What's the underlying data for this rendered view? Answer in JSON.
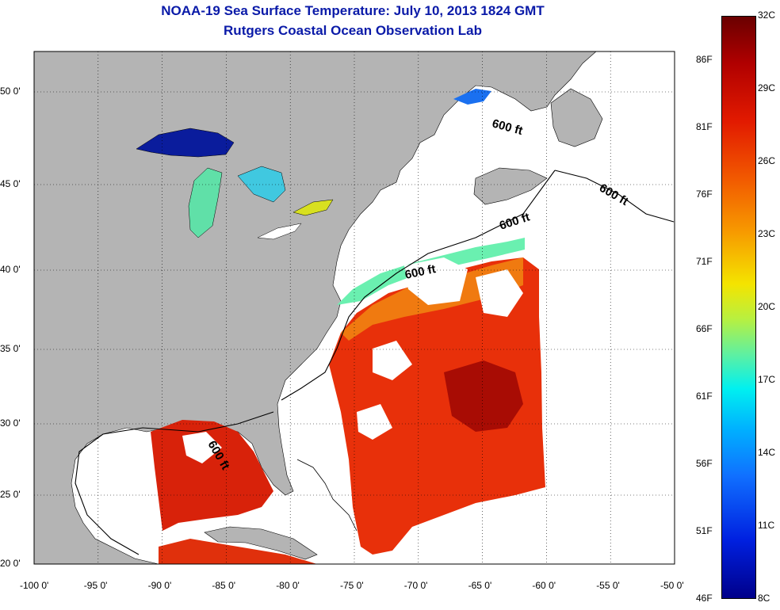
{
  "header": {
    "title": "NOAA-19 Sea Surface Temperature:  July 10, 2013 1824 GMT",
    "subtitle": "Rutgers Coastal Ocean Observation Lab"
  },
  "axes": {
    "lon_ticks": [
      "-100 0'",
      "-95 0'",
      "-90 0'",
      "-85 0'",
      "-80 0'",
      "-75 0'",
      "-70 0'",
      "-65 0'",
      "-60 0'",
      "-55 0'",
      "-50 0'"
    ],
    "lat_ticks": [
      "50 0'",
      "45 0'",
      "40 0'",
      "35 0'",
      "30 0'",
      "25 0'",
      "20 0'"
    ]
  },
  "colorbar": {
    "celsius": [
      "32C",
      "29C",
      "26C",
      "23C",
      "20C",
      "17C",
      "14C",
      "11C",
      "8C"
    ],
    "fahrenheit": [
      "86F",
      "81F",
      "76F",
      "71F",
      "66F",
      "61F",
      "56F",
      "51F",
      "46F"
    ]
  },
  "contour_labels": [
    "600 ft",
    "600 ft",
    "600 ft",
    "600 ft",
    "600 ft"
  ],
  "colors": {
    "title": "#0a1aa8",
    "land": "#b4b4b4",
    "ocean_nodata": "#ffffff",
    "warm": "#e02000",
    "cold": "#0018a0"
  }
}
